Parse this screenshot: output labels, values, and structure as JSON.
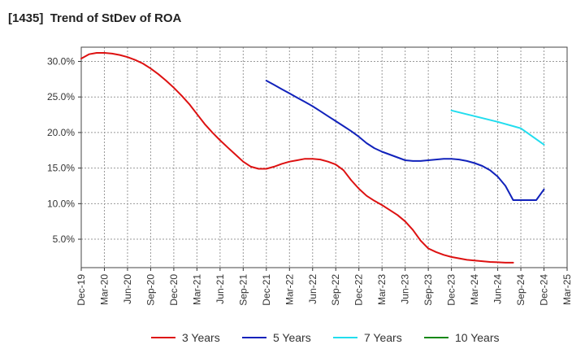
{
  "chart_data": {
    "type": "line",
    "title": "[1435]  Trend of StDev of ROA",
    "xlabel": "",
    "ylabel": "",
    "x_ticks": [
      "Dec-19",
      "Mar-20",
      "Jun-20",
      "Sep-20",
      "Dec-20",
      "Mar-21",
      "Jun-21",
      "Sep-21",
      "Dec-21",
      "Mar-22",
      "Jun-22",
      "Sep-22",
      "Dec-22",
      "Mar-23",
      "Jun-23",
      "Sep-23",
      "Dec-23",
      "Mar-24",
      "Jun-24",
      "Sep-24",
      "Dec-24",
      "Mar-25"
    ],
    "y_ticks": [
      "5.0%",
      "10.0%",
      "15.0%",
      "20.0%",
      "25.0%",
      "30.0%"
    ],
    "y_tick_values": [
      5,
      10,
      15,
      20,
      25,
      30
    ],
    "ylim": [
      1,
      32
    ],
    "grid": {
      "horizontal": true,
      "vertical": true,
      "style": "dotted"
    },
    "legend_position": "bottom",
    "series": [
      {
        "name": "3 Years",
        "color": "#dd1111",
        "points": [
          [
            "Dec-19",
            30.4
          ],
          [
            "Jan-20",
            31.0
          ],
          [
            "Feb-20",
            31.2
          ],
          [
            "Mar-20",
            31.2
          ],
          [
            "Apr-20",
            31.1
          ],
          [
            "May-20",
            30.9
          ],
          [
            "Jun-20",
            30.6
          ],
          [
            "Jul-20",
            30.2
          ],
          [
            "Aug-20",
            29.7
          ],
          [
            "Sep-20",
            29.0
          ],
          [
            "Oct-20",
            28.2
          ],
          [
            "Nov-20",
            27.3
          ],
          [
            "Dec-20",
            26.3
          ],
          [
            "Jan-21",
            25.2
          ],
          [
            "Feb-21",
            24.0
          ],
          [
            "Mar-21",
            22.6
          ],
          [
            "Apr-21",
            21.2
          ],
          [
            "May-21",
            20.0
          ],
          [
            "Jun-21",
            18.9
          ],
          [
            "Jul-21",
            17.9
          ],
          [
            "Aug-21",
            16.9
          ],
          [
            "Sep-21",
            15.9
          ],
          [
            "Oct-21",
            15.2
          ],
          [
            "Nov-21",
            14.9
          ],
          [
            "Dec-21",
            14.9
          ],
          [
            "Jan-22",
            15.2
          ],
          [
            "Feb-22",
            15.6
          ],
          [
            "Mar-22",
            15.9
          ],
          [
            "Apr-22",
            16.1
          ],
          [
            "May-22",
            16.3
          ],
          [
            "Jun-22",
            16.3
          ],
          [
            "Jul-22",
            16.2
          ],
          [
            "Aug-22",
            15.9
          ],
          [
            "Sep-22",
            15.5
          ],
          [
            "Oct-22",
            14.7
          ],
          [
            "Nov-22",
            13.3
          ],
          [
            "Dec-22",
            12.1
          ],
          [
            "Jan-23",
            11.1
          ],
          [
            "Feb-23",
            10.4
          ],
          [
            "Mar-23",
            9.8
          ],
          [
            "Apr-23",
            9.1
          ],
          [
            "May-23",
            8.4
          ],
          [
            "Jun-23",
            7.5
          ],
          [
            "Jul-23",
            6.3
          ],
          [
            "Aug-23",
            4.8
          ],
          [
            "Sep-23",
            3.7
          ],
          [
            "Oct-23",
            3.2
          ],
          [
            "Nov-23",
            2.8
          ],
          [
            "Dec-23",
            2.5
          ],
          [
            "Jan-24",
            2.3
          ],
          [
            "Feb-24",
            2.1
          ],
          [
            "Mar-24",
            2.0
          ],
          [
            "Apr-24",
            1.9
          ],
          [
            "May-24",
            1.8
          ],
          [
            "Jun-24",
            1.75
          ],
          [
            "Jul-24",
            1.7
          ],
          [
            "Aug-24",
            1.7
          ]
        ]
      },
      {
        "name": "5 Years",
        "color": "#1122bb",
        "points": [
          [
            "Dec-21",
            27.3
          ],
          [
            "Jan-22",
            26.7
          ],
          [
            "Feb-22",
            26.1
          ],
          [
            "Mar-22",
            25.5
          ],
          [
            "Apr-22",
            24.9
          ],
          [
            "May-22",
            24.3
          ],
          [
            "Jun-22",
            23.7
          ],
          [
            "Jul-22",
            23.0
          ],
          [
            "Aug-22",
            22.3
          ],
          [
            "Sep-22",
            21.6
          ],
          [
            "Oct-22",
            20.9
          ],
          [
            "Nov-22",
            20.2
          ],
          [
            "Dec-22",
            19.4
          ],
          [
            "Jan-23",
            18.5
          ],
          [
            "Feb-23",
            17.8
          ],
          [
            "Mar-23",
            17.3
          ],
          [
            "Apr-23",
            16.9
          ],
          [
            "May-23",
            16.5
          ],
          [
            "Jun-23",
            16.1
          ],
          [
            "Jul-23",
            16.0
          ],
          [
            "Aug-23",
            16.0
          ],
          [
            "Sep-23",
            16.1
          ],
          [
            "Oct-23",
            16.2
          ],
          [
            "Nov-23",
            16.3
          ],
          [
            "Dec-23",
            16.3
          ],
          [
            "Jan-24",
            16.2
          ],
          [
            "Feb-24",
            16.0
          ],
          [
            "Mar-24",
            15.7
          ],
          [
            "Apr-24",
            15.3
          ],
          [
            "May-24",
            14.7
          ],
          [
            "Jun-24",
            13.8
          ],
          [
            "Jul-24",
            12.5
          ],
          [
            "Aug-24",
            10.5
          ],
          [
            "Sep-24",
            10.5
          ],
          [
            "Oct-24",
            10.5
          ],
          [
            "Nov-24",
            10.5
          ],
          [
            "Dec-24",
            12.0
          ]
        ]
      },
      {
        "name": "7 Years",
        "color": "#22ddee",
        "points": [
          [
            "Dec-23",
            23.1
          ],
          [
            "Mar-24",
            22.3
          ],
          [
            "Jun-24",
            21.5
          ],
          [
            "Sep-24",
            20.6
          ],
          [
            "Dec-24",
            18.3
          ]
        ]
      },
      {
        "name": "10 Years",
        "color": "#118811",
        "points": []
      }
    ]
  }
}
